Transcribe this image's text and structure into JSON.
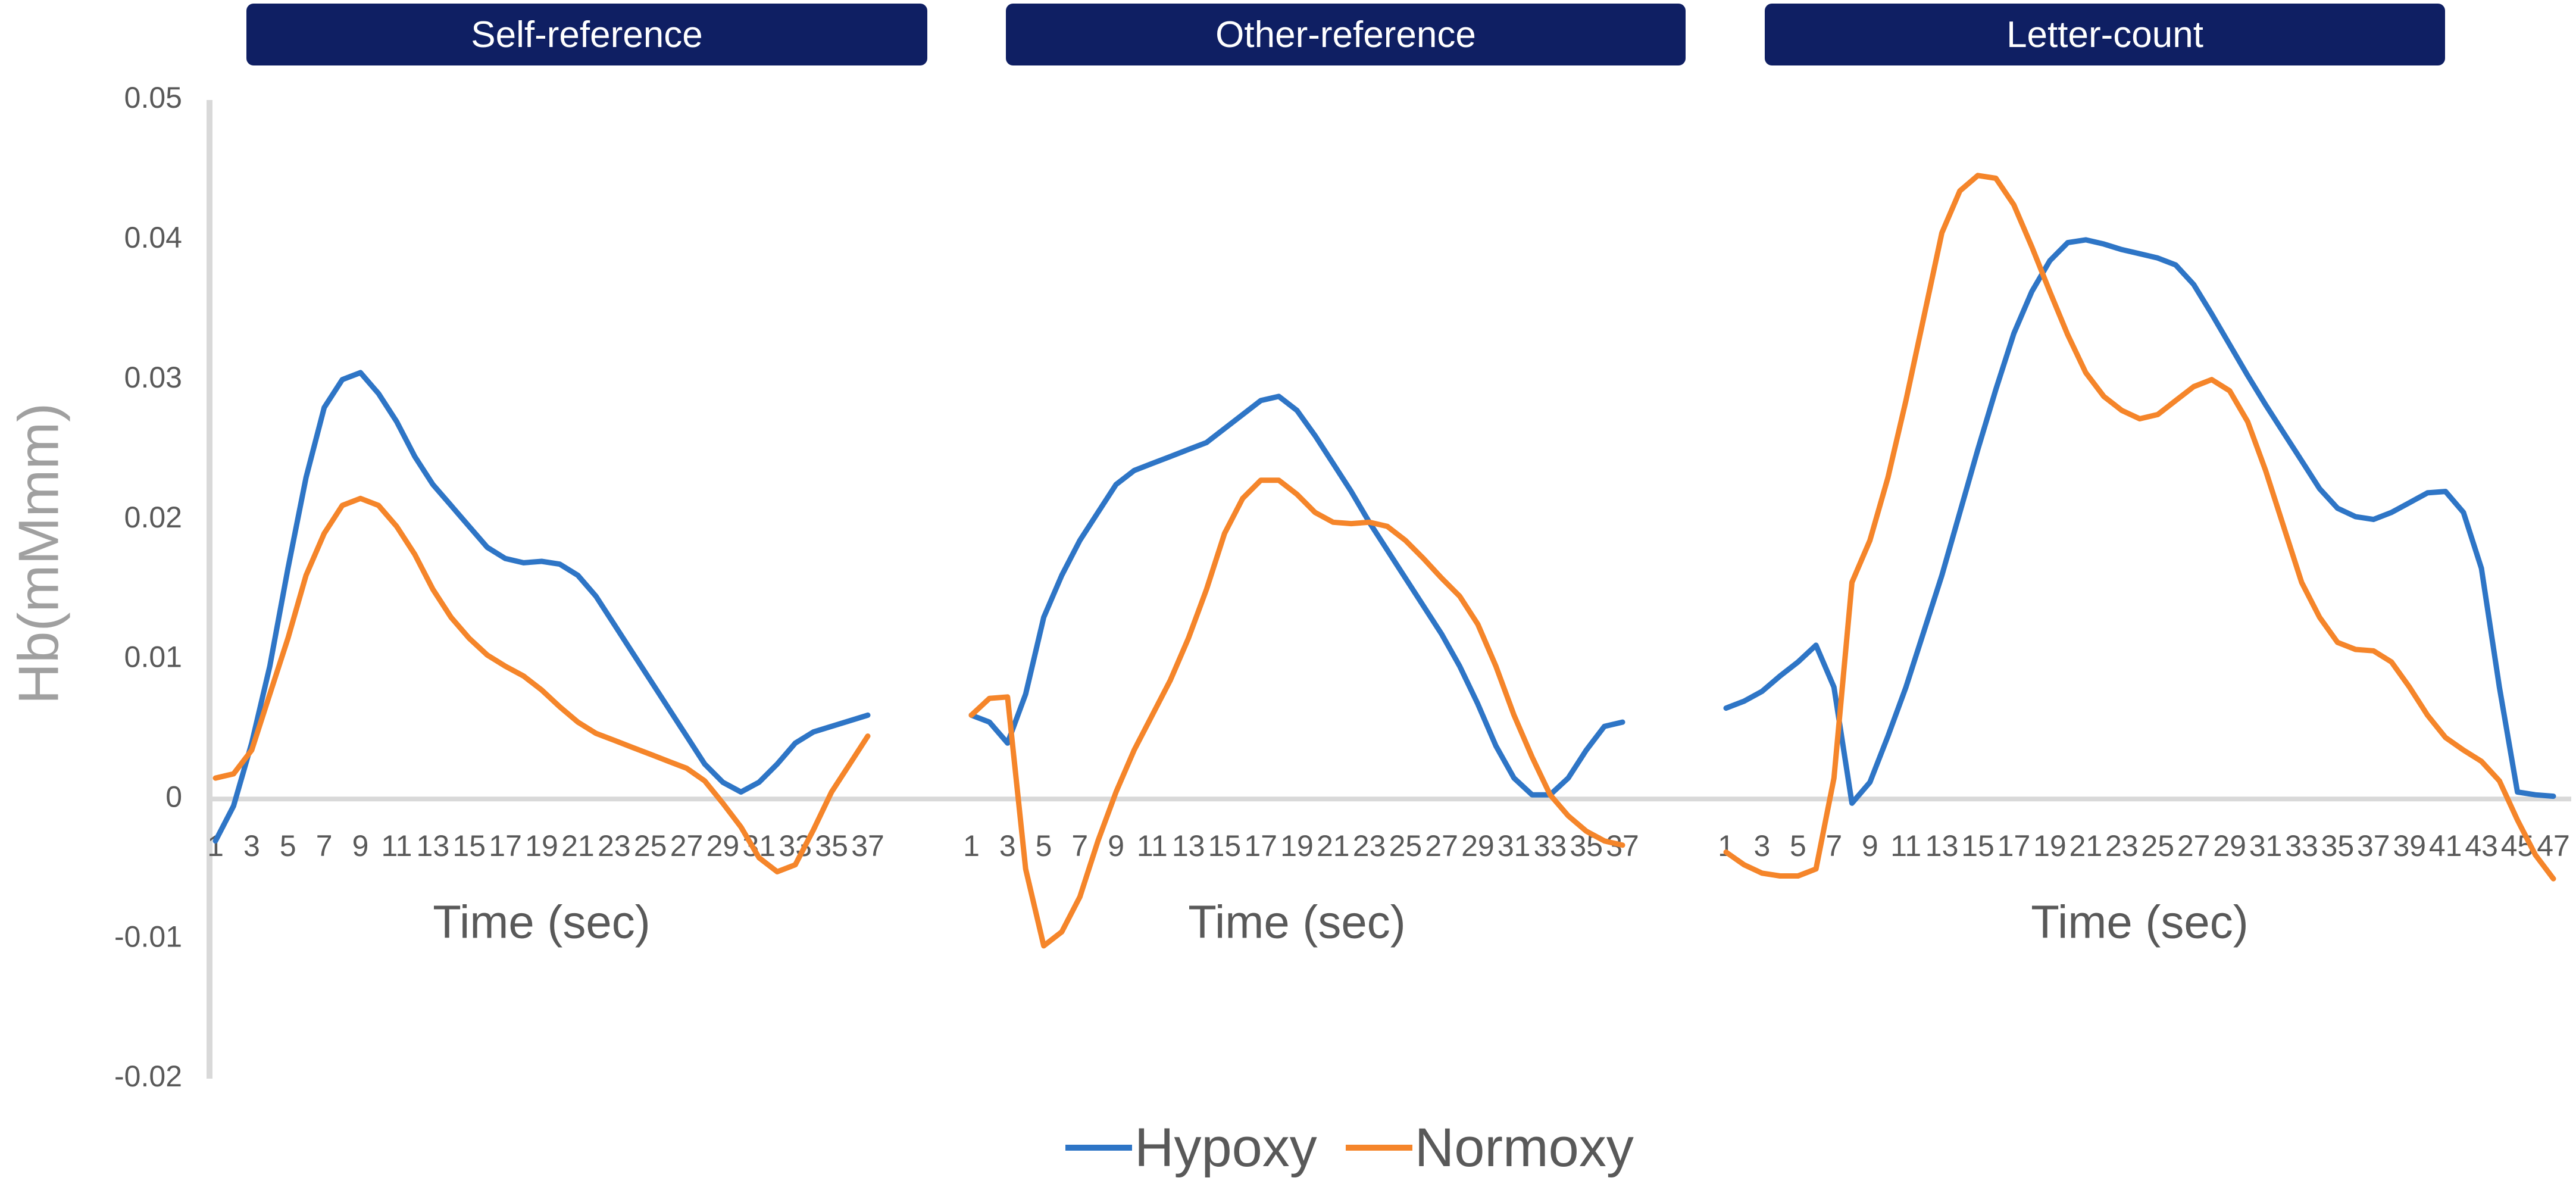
{
  "chart_data": {
    "type": "line",
    "ylabel": "Hb(mMmm)",
    "ylim": [
      -0.02,
      0.05
    ],
    "yticks": [
      "0.05",
      "0.04",
      "0.03",
      "0.02",
      "0.01",
      "0",
      "-0.01",
      "-0.02"
    ],
    "legend_position": "bottom",
    "series_names": [
      "Hypoxy",
      "Normoxy"
    ],
    "colors": {
      "Hypoxy": "#2e75c6",
      "Normoxy": "#f5852a"
    },
    "panels": [
      {
        "title": "Self-reference",
        "xlabel": "Time (sec)",
        "x_tick_labels": [
          "1",
          "3",
          "5",
          "7",
          "9",
          "11",
          "13",
          "15",
          "17",
          "19",
          "21",
          "23",
          "25",
          "27",
          "29",
          "31",
          "33",
          "35",
          "37"
        ],
        "x": [
          1,
          2,
          3,
          4,
          5,
          6,
          7,
          8,
          9,
          10,
          11,
          12,
          13,
          14,
          15,
          16,
          17,
          18,
          19,
          20,
          21,
          22,
          23,
          24,
          25,
          26,
          27,
          28,
          29,
          30,
          31,
          32,
          33,
          34,
          35,
          36,
          37
        ],
        "series": [
          {
            "name": "Hypoxy",
            "values": [
              -0.003,
              -0.0005,
              0.004,
              0.0095,
              0.0165,
              0.023,
              0.028,
              0.03,
              0.0305,
              0.029,
              0.027,
              0.0245,
              0.0225,
              0.021,
              0.0195,
              0.018,
              0.0172,
              0.0169,
              0.017,
              0.0168,
              0.016,
              0.0145,
              0.0125,
              0.0105,
              0.0085,
              0.0065,
              0.0045,
              0.0025,
              0.0012,
              0.0005,
              0.0012,
              0.0025,
              0.004,
              0.0048,
              0.0052,
              0.0056,
              0.006
            ]
          },
          {
            "name": "Normoxy",
            "values": [
              0.0015,
              0.0018,
              0.0035,
              0.0075,
              0.0115,
              0.016,
              0.019,
              0.021,
              0.0215,
              0.021,
              0.0195,
              0.0175,
              0.015,
              0.013,
              0.0115,
              0.0103,
              0.0095,
              0.0088,
              0.0078,
              0.0066,
              0.0055,
              0.0047,
              0.0042,
              0.0037,
              0.0032,
              0.0027,
              0.0022,
              0.0013,
              -0.0003,
              -0.002,
              -0.0042,
              -0.0052,
              -0.0047,
              -0.0022,
              0.0005,
              0.0025,
              0.0045
            ]
          }
        ]
      },
      {
        "title": "Other-reference",
        "xlabel": "Time (sec)",
        "x_tick_labels": [
          "1",
          "3",
          "5",
          "7",
          "9",
          "11",
          "13",
          "15",
          "17",
          "19",
          "21",
          "23",
          "25",
          "27",
          "29",
          "31",
          "33",
          "35",
          "37"
        ],
        "x": [
          1,
          2,
          3,
          4,
          5,
          6,
          7,
          8,
          9,
          10,
          11,
          12,
          13,
          14,
          15,
          16,
          17,
          18,
          19,
          20,
          21,
          22,
          23,
          24,
          25,
          26,
          27,
          28,
          29,
          30,
          31,
          32,
          33,
          34,
          35,
          36,
          37
        ],
        "series": [
          {
            "name": "Hypoxy",
            "values": [
              0.006,
              0.0055,
              0.004,
              0.0075,
              0.013,
              0.016,
              0.0185,
              0.0205,
              0.0225,
              0.0235,
              0.024,
              0.0245,
              0.025,
              0.0255,
              0.0265,
              0.0275,
              0.0285,
              0.0288,
              0.0278,
              0.026,
              0.024,
              0.022,
              0.0198,
              0.0178,
              0.0158,
              0.0138,
              0.0118,
              0.0095,
              0.0068,
              0.0038,
              0.0015,
              0.0003,
              0.0003,
              0.0015,
              0.0035,
              0.0052,
              0.0055
            ]
          },
          {
            "name": "Normoxy",
            "values": [
              0.006,
              0.0072,
              0.0073,
              -0.005,
              -0.0105,
              -0.0095,
              -0.007,
              -0.003,
              0.0005,
              0.0035,
              0.006,
              0.0085,
              0.0115,
              0.015,
              0.019,
              0.0215,
              0.0228,
              0.0228,
              0.0218,
              0.0205,
              0.0198,
              0.0197,
              0.0198,
              0.0195,
              0.0185,
              0.0172,
              0.0158,
              0.0145,
              0.0125,
              0.0095,
              0.006,
              0.003,
              0.0003,
              -0.0012,
              -0.0023,
              -0.003,
              -0.0033
            ]
          }
        ]
      },
      {
        "title": "Letter-count",
        "xlabel": "Time (sec)",
        "x_tick_labels": [
          "1",
          "3",
          "5",
          "7",
          "9",
          "11",
          "13",
          "15",
          "17",
          "19",
          "21",
          "23",
          "25",
          "27",
          "29",
          "31",
          "33",
          "35",
          "37",
          "39",
          "41",
          "43",
          "45",
          "47"
        ],
        "x": [
          1,
          2,
          3,
          4,
          5,
          6,
          7,
          8,
          9,
          10,
          11,
          12,
          13,
          14,
          15,
          16,
          17,
          18,
          19,
          20,
          21,
          22,
          23,
          24,
          25,
          26,
          27,
          28,
          29,
          30,
          31,
          32,
          33,
          34,
          35,
          36,
          37,
          38,
          39,
          40,
          41,
          42,
          43,
          44,
          45,
          46,
          47
        ],
        "series": [
          {
            "name": "Hypoxy",
            "values": [
              0.0065,
              0.007,
              0.0077,
              0.0088,
              0.0098,
              0.011,
              0.008,
              -0.0003,
              0.0012,
              0.0045,
              0.008,
              0.012,
              0.016,
              0.0205,
              0.025,
              0.0293,
              0.0333,
              0.0363,
              0.0385,
              0.0398,
              0.04,
              0.0397,
              0.0393,
              0.039,
              0.0387,
              0.0382,
              0.0368,
              0.0347,
              0.0325,
              0.0303,
              0.0282,
              0.0262,
              0.0242,
              0.0222,
              0.0208,
              0.0202,
              0.02,
              0.0205,
              0.0212,
              0.0219,
              0.022,
              0.0205,
              0.0165,
              0.008,
              0.0005,
              0.0003,
              0.0002
            ]
          },
          {
            "name": "Normoxy",
            "values": [
              -0.0038,
              -0.0047,
              -0.0053,
              -0.0055,
              -0.0055,
              -0.005,
              0.0015,
              0.0155,
              0.0185,
              0.023,
              0.0285,
              0.0345,
              0.0405,
              0.0435,
              0.0446,
              0.0444,
              0.0425,
              0.0395,
              0.0363,
              0.0332,
              0.0305,
              0.0288,
              0.0278,
              0.0272,
              0.0275,
              0.0285,
              0.0295,
              0.03,
              0.0292,
              0.027,
              0.0235,
              0.0195,
              0.0155,
              0.013,
              0.0112,
              0.0107,
              0.0106,
              0.0098,
              0.008,
              0.006,
              0.0044,
              0.0035,
              0.0027,
              0.0013,
              -0.0015,
              -0.004,
              -0.0057
            ]
          }
        ]
      }
    ]
  }
}
